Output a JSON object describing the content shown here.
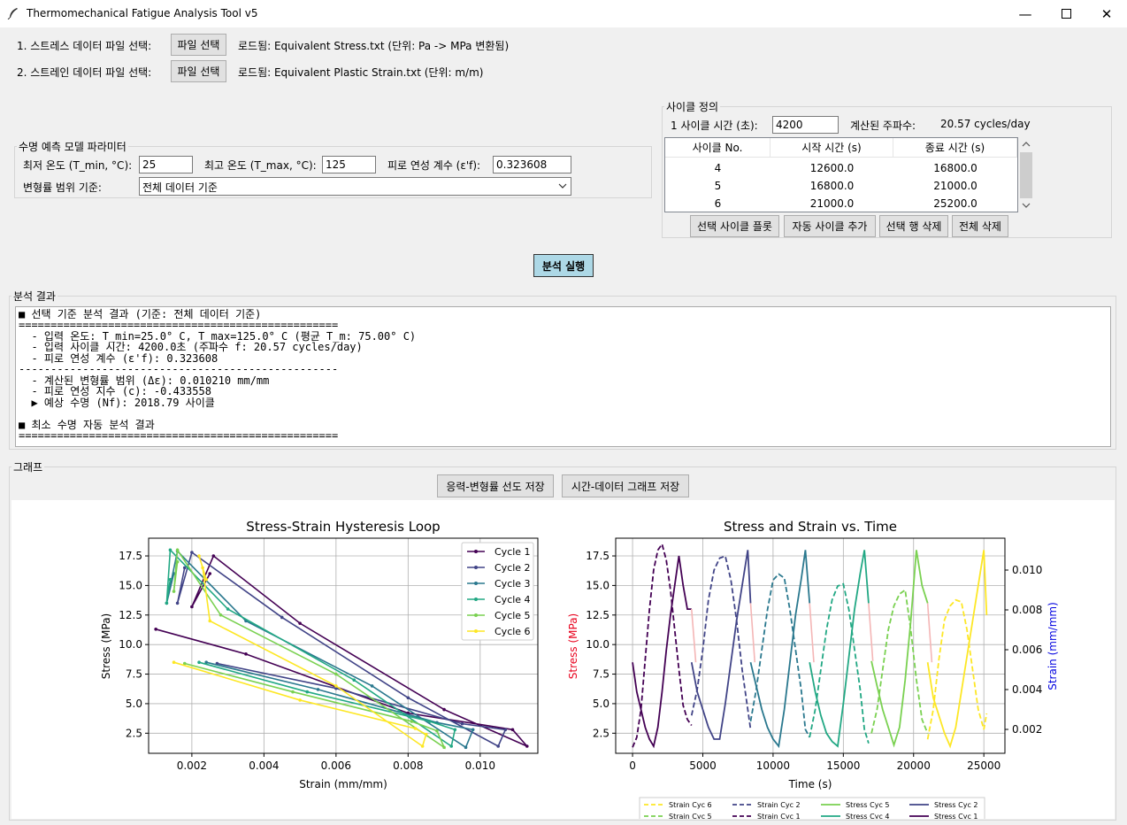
{
  "window": {
    "title": "Thermomechanical Fatigue Analysis Tool v5"
  },
  "files": {
    "stress_label": "1. 스트레스 데이터 파일 선택:",
    "strain_label": "2. 스트레인 데이터 파일 선택:",
    "select_button": "파일 선택",
    "stress_status": "로드됨: Equivalent Stress.txt (단위: Pa -> MPa 변환됨)",
    "strain_status": "로드됨: Equivalent Plastic Strain.txt (단위: m/m)"
  },
  "model": {
    "legend": "수명 예측 모델 파라미터",
    "tmin_label": "최저 온도 (T_min, °C):",
    "tmin_value": "25",
    "tmax_label": "최고 온도 (T_max, °C):",
    "tmax_value": "125",
    "ductility_label": "피로 연성 계수 (ε'f):",
    "ductility_value": "0.323608",
    "range_label": "변형률 범위 기준:",
    "range_value": "전체 데이터 기준"
  },
  "cycle": {
    "legend": "사이클 정의",
    "time_label": "1 사이클 시간 (초):",
    "time_value": "4200",
    "freq_label": "계산된 주파수:",
    "freq_value": "20.57 cycles/day",
    "columns": [
      "사이클 No.",
      "시작 시간 (s)",
      "종료 시간 (s)"
    ],
    "rows": [
      [
        "4",
        "12600.0",
        "16800.0"
      ],
      [
        "5",
        "16800.0",
        "21000.0"
      ],
      [
        "6",
        "21000.0",
        "25200.0"
      ]
    ],
    "buttons": {
      "plot": "선택 사이클 플롯",
      "auto_add": "자동 사이클 추가",
      "delete_row": "선택 행 삭제",
      "delete_all": "전체 삭제"
    }
  },
  "run_button": "분석 실행",
  "results": {
    "legend": "분석 결과",
    "lines": [
      "■ 선택 기준 분석 결과 (기준: 전체 데이터 기준)",
      "==================================================",
      "  - 입력 온도: T_min=25.0° C, T_max=125.0° C (평균 T_m: 75.00° C)",
      "  - 입력 사이클 시간: 4200.0초 (주파수 f: 20.57 cycles/day)",
      "  - 피로 연성 계수 (ε'f): 0.323608",
      "--------------------------------------------------",
      "  - 계산된 변형률 범위 (Δε): 0.010210 mm/mm",
      "  - 피로 연성 지수 (c): -0.433558",
      "  ▶ 예상 수명 (Nf): 2018.79 사이클",
      "",
      "■ 최소 수명 자동 분석 결과",
      "=================================================="
    ]
  },
  "graph": {
    "legend": "그래프",
    "save_hysteresis": "응력-변형률 선도 저장",
    "save_time": "시간-데이터 그래프 저장"
  },
  "colors": {
    "cycles": [
      "#440154",
      "#414487",
      "#2a788e",
      "#22a884",
      "#7ad151",
      "#fde725"
    ],
    "run_button": "#add8e6"
  },
  "chart_data": [
    {
      "type": "line",
      "title": "Stress-Strain Hysteresis Loop",
      "xlabel": "Strain (mm/mm)",
      "ylabel": "Stress (MPa)",
      "xlim": [
        0.0008,
        0.0116
      ],
      "ylim": [
        0.8,
        19.0
      ],
      "xticks": [
        0.002,
        0.004,
        0.006,
        0.008,
        0.01
      ],
      "xticklabels": [
        "0.002",
        "0.004",
        "0.006",
        "0.008",
        "0.010"
      ],
      "yticks": [
        2.5,
        5.0,
        7.5,
        10.0,
        12.5,
        15.0,
        17.5
      ],
      "grid": true,
      "legend_position": "top-right",
      "series": [
        {
          "name": "Cycle 1",
          "x": [
            0.001,
            0.0035,
            0.008,
            0.0109,
            0.0113,
            0.009,
            0.005,
            0.0026,
            0.002,
            0.0025
          ],
          "y": [
            11.3,
            9.2,
            4.2,
            2.8,
            1.4,
            4.5,
            11.8,
            17.5,
            13.2,
            16.0
          ]
        },
        {
          "name": "Cycle 2",
          "x": [
            0.0027,
            0.006,
            0.0095,
            0.0107,
            0.0105,
            0.008,
            0.0045,
            0.002,
            0.0016,
            0.0018
          ],
          "y": [
            8.4,
            6.3,
            3.3,
            2.8,
            1.4,
            5.5,
            12.3,
            17.8,
            13.5,
            16.5
          ]
        },
        {
          "name": "Cycle 3",
          "x": [
            0.0024,
            0.0055,
            0.0088,
            0.0098,
            0.0096,
            0.007,
            0.0035,
            0.0016,
            0.0013,
            0.0015
          ],
          "y": [
            8.5,
            6.2,
            3.4,
            2.8,
            1.3,
            6.5,
            12.0,
            17.9,
            13.5,
            16.0
          ]
        },
        {
          "name": "Cycle 4",
          "x": [
            0.0022,
            0.0052,
            0.0086,
            0.0093,
            0.0092,
            0.0065,
            0.003,
            0.0014,
            0.0013,
            0.0014
          ],
          "y": [
            8.5,
            6.0,
            3.5,
            2.8,
            1.4,
            7.0,
            13.0,
            18.0,
            13.5,
            15.5
          ]
        },
        {
          "name": "Cycle 5",
          "x": [
            0.0018,
            0.0048,
            0.0081,
            0.0088,
            0.009,
            0.006,
            0.0028,
            0.0016,
            0.0015,
            0.0016
          ],
          "y": [
            8.4,
            6.0,
            3.5,
            2.7,
            1.3,
            7.5,
            12.5,
            18.0,
            14.5,
            17.0
          ]
        },
        {
          "name": "Cycle 6",
          "x": [
            0.0015,
            0.005,
            0.0082,
            0.0085,
            0.0084,
            0.006,
            0.0025,
            0.0023,
            0.0022,
            0.0024
          ],
          "y": [
            8.5,
            5.3,
            2.9,
            2.4,
            1.4,
            6.5,
            12.0,
            16.5,
            17.5,
            15.5
          ]
        }
      ]
    },
    {
      "type": "line",
      "title": "Stress and Strain vs. Time",
      "xlabel": "Time (s)",
      "ylabel": "Stress (MPa)",
      "y2label": "Strain (mm/mm)",
      "xlim": [
        -1200,
        26500
      ],
      "ylim": [
        0.8,
        19.0
      ],
      "y2lim": [
        0.0008,
        0.0116
      ],
      "xticks": [
        0,
        5000,
        10000,
        15000,
        20000,
        25000
      ],
      "yticks": [
        2.5,
        5.0,
        7.5,
        10.0,
        12.5,
        15.0,
        17.5
      ],
      "y2ticks": [
        0.002,
        0.004,
        0.006,
        0.008,
        0.01
      ],
      "y2ticklabels": [
        "0.002",
        "0.004",
        "0.006",
        "0.008",
        "0.010"
      ],
      "ylabel_color": "#e8001c",
      "y2label_color": "#0000e0",
      "grid": true,
      "legend_position": "bottom-center",
      "legend_entries": [
        "Strain Cyc 6",
        "Strain Cyc 2",
        "Stress Cyc 5",
        "Stress Cyc 2",
        "Strain Cyc 5",
        "Strain Cyc 1",
        "Stress Cyc 4",
        "Stress Cyc 1"
      ],
      "stress_series": [
        {
          "name": "Stress Cyc 1",
          "t": [
            0,
            300,
            600,
            900,
            1200,
            1500,
            1800,
            2100,
            2400,
            2700,
            3000,
            3300,
            3600,
            3900,
            4200
          ],
          "y": [
            8.5,
            6.0,
            4.5,
            3.0,
            2.0,
            1.4,
            3.0,
            6.0,
            9.5,
            12.5,
            15.0,
            17.5,
            15.0,
            13.0,
            13.0
          ]
        },
        {
          "name": "Stress Cyc 2",
          "t": [
            4200,
            4600,
            5000,
            5400,
            5800,
            6200,
            6600,
            7000,
            7400,
            7800,
            8200,
            8400
          ],
          "y": [
            8.5,
            6.0,
            4.5,
            3.0,
            2.0,
            2.0,
            5.0,
            8.5,
            12.0,
            15.0,
            18.0,
            13.5
          ]
        },
        {
          "name": "Stress Cyc 3",
          "t": [
            8400,
            8800,
            9200,
            9600,
            10000,
            10400,
            10800,
            11200,
            11600,
            12000,
            12300,
            12600
          ],
          "y": [
            8.5,
            6.5,
            4.5,
            3.0,
            2.0,
            1.4,
            4.5,
            8.5,
            12.5,
            15.5,
            18.0,
            13.5
          ]
        },
        {
          "name": "Stress Cyc 4",
          "t": [
            12600,
            13000,
            13400,
            13800,
            14200,
            14600,
            15000,
            15400,
            15800,
            16200,
            16500,
            16800
          ],
          "y": [
            8.5,
            6.0,
            4.0,
            2.5,
            1.8,
            1.4,
            5.0,
            9.0,
            13.0,
            16.0,
            18.0,
            13.5
          ]
        },
        {
          "name": "Stress Cyc 5",
          "t": [
            17000,
            17400,
            17800,
            18200,
            18600,
            19000,
            19400,
            19800,
            20200,
            20600,
            21000
          ],
          "y": [
            8.6,
            6.5,
            4.5,
            3.0,
            1.5,
            3.0,
            7.0,
            12.0,
            18.0,
            15.0,
            13.5
          ]
        },
        {
          "name": "Stress Cyc 6",
          "t": [
            21000,
            21400,
            21800,
            22200,
            22600,
            23000,
            23400,
            23800,
            24200,
            24600,
            25000,
            25200
          ],
          "y": [
            8.5,
            5.5,
            4.0,
            2.5,
            1.4,
            3.0,
            6.0,
            9.0,
            12.0,
            15.0,
            18.0,
            12.5
          ]
        }
      ],
      "strain_series": [
        {
          "name": "Strain Cyc 1",
          "t": [
            0,
            300,
            600,
            900,
            1200,
            1500,
            1800,
            2100,
            2400,
            2700,
            3000,
            3300,
            3600,
            3900,
            4200
          ],
          "y": [
            0.0011,
            0.0016,
            0.003,
            0.0055,
            0.008,
            0.01,
            0.011,
            0.0113,
            0.0105,
            0.009,
            0.007,
            0.005,
            0.0032,
            0.0025,
            0.0022
          ]
        },
        {
          "name": "Strain Cyc 2",
          "t": [
            4200,
            4600,
            5000,
            5400,
            5800,
            6200,
            6600,
            7000,
            7400,
            7800,
            8200,
            8400
          ],
          "y": [
            0.0027,
            0.004,
            0.006,
            0.0085,
            0.01,
            0.0106,
            0.0107,
            0.0095,
            0.0075,
            0.005,
            0.003,
            0.002
          ]
        },
        {
          "name": "Strain Cyc 3",
          "t": [
            8400,
            8800,
            9200,
            9600,
            10000,
            10400,
            10800,
            11200,
            11600,
            12000,
            12300,
            12600
          ],
          "y": [
            0.0024,
            0.004,
            0.006,
            0.008,
            0.0095,
            0.0098,
            0.0096,
            0.008,
            0.006,
            0.004,
            0.002,
            0.0016
          ]
        },
        {
          "name": "Strain Cyc 4",
          "t": [
            12600,
            13000,
            13400,
            13800,
            14200,
            14600,
            15000,
            15400,
            15800,
            16200,
            16500,
            16800
          ],
          "y": [
            0.0016,
            0.003,
            0.005,
            0.007,
            0.0085,
            0.0092,
            0.0093,
            0.008,
            0.006,
            0.004,
            0.002,
            0.0013
          ]
        },
        {
          "name": "Strain Cyc 5",
          "t": [
            17000,
            17400,
            17800,
            18200,
            18600,
            19000,
            19400,
            19800,
            20200,
            20600,
            21000
          ],
          "y": [
            0.0018,
            0.003,
            0.005,
            0.007,
            0.0082,
            0.0088,
            0.009,
            0.007,
            0.0045,
            0.0025,
            0.0018
          ]
        },
        {
          "name": "Strain Cyc 6",
          "t": [
            21000,
            21400,
            21800,
            22200,
            22600,
            23000,
            23400,
            23800,
            24200,
            24600,
            25000,
            25200
          ],
          "y": [
            0.0015,
            0.003,
            0.0055,
            0.0075,
            0.0082,
            0.0085,
            0.0084,
            0.007,
            0.005,
            0.003,
            0.002,
            0.0028
          ]
        }
      ]
    }
  ]
}
